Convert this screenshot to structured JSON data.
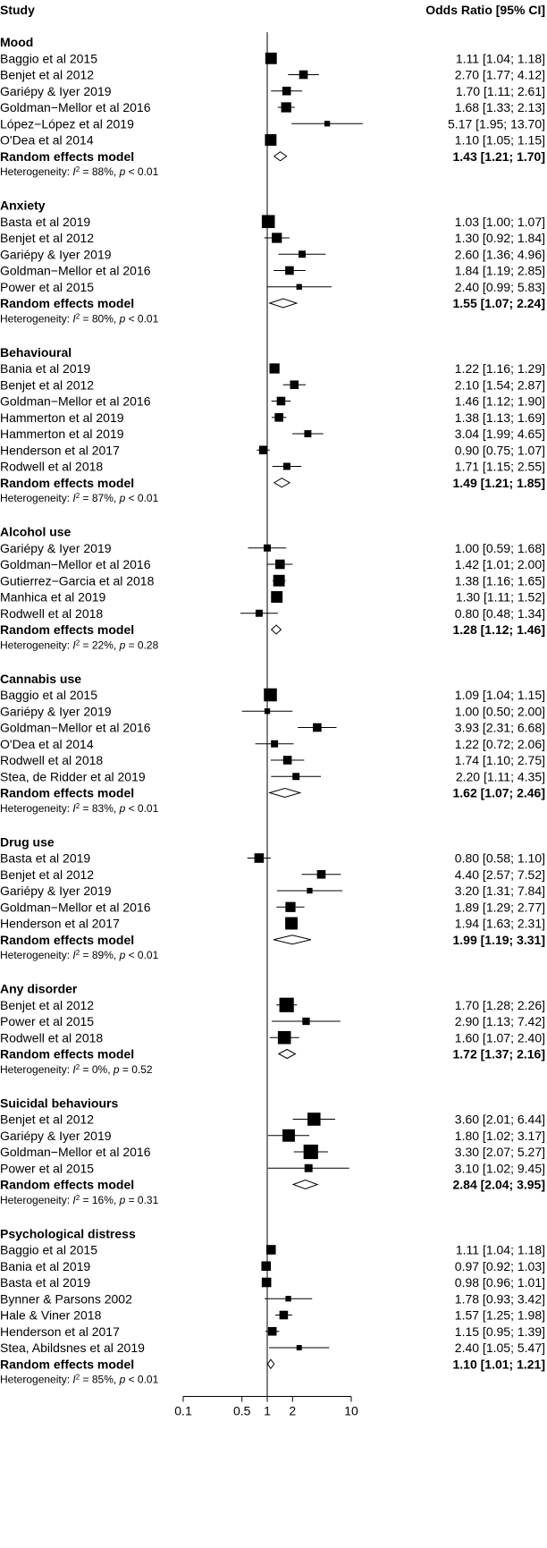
{
  "chart_data": {
    "type": "forest",
    "header": {
      "study": "Study",
      "or": "Odds Ratio [95% CI]"
    },
    "x_axis": {
      "scale": "log",
      "ticks": [
        "0.1",
        "0.5",
        "1",
        "2",
        "10"
      ],
      "tick_values": [
        0.1,
        0.5,
        1,
        2,
        10
      ],
      "reference_line": 1
    },
    "groups": [
      {
        "name": "Mood",
        "studies": [
          {
            "study": "Baggio et al 2015",
            "or": 1.11,
            "lo": 1.04,
            "hi": 1.18,
            "label": "1.11 [1.04; 1.18]",
            "weight": 3
          },
          {
            "study": "Benjet et al 2012",
            "or": 2.7,
            "lo": 1.77,
            "hi": 4.12,
            "label": "2.70 [1.77; 4.12]",
            "weight": 2
          },
          {
            "study": "Gariépy & Iyer 2019",
            "or": 1.7,
            "lo": 1.11,
            "hi": 2.61,
            "label": "1.70 [1.11; 2.61]",
            "weight": 2
          },
          {
            "study": "Goldman−Mellor et al 2016",
            "or": 1.68,
            "lo": 1.33,
            "hi": 2.13,
            "label": "1.68 [1.33; 2.13]",
            "weight": 2.5
          },
          {
            "study": "López−López et al 2019",
            "or": 5.17,
            "lo": 1.95,
            "hi": 13.7,
            "label": "5.17 [1.95; 13.70]",
            "weight": 1
          },
          {
            "study": "O'Dea et al 2014",
            "or": 1.1,
            "lo": 1.05,
            "hi": 1.15,
            "label": "1.10 [1.05; 1.15]",
            "weight": 3
          }
        ],
        "summary": {
          "label": "Random effects model",
          "or": 1.43,
          "lo": 1.21,
          "hi": 1.7,
          "text": "1.43 [1.21; 1.70]"
        },
        "heterogeneity": {
          "i2": "88%",
          "p": "< 0.01"
        }
      },
      {
        "name": "Anxiety",
        "studies": [
          {
            "study": "Basta et al 2019",
            "or": 1.03,
            "lo": 1.0,
            "hi": 1.07,
            "label": "1.03 [1.00; 1.07]",
            "weight": 3.5
          },
          {
            "study": "Benjet et al 2012",
            "or": 1.3,
            "lo": 0.92,
            "hi": 1.84,
            "label": "1.30 [0.92; 1.84]",
            "weight": 2.5
          },
          {
            "study": "Gariépy & Iyer 2019",
            "or": 2.6,
            "lo": 1.36,
            "hi": 4.96,
            "label": "2.60 [1.36; 4.96]",
            "weight": 1.5
          },
          {
            "study": "Goldman−Mellor et al 2016",
            "or": 1.84,
            "lo": 1.19,
            "hi": 2.85,
            "label": "1.84 [1.19; 2.85]",
            "weight": 2
          },
          {
            "study": "Power et al 2015",
            "or": 2.4,
            "lo": 0.99,
            "hi": 5.83,
            "label": "2.40 [0.99; 5.83]",
            "weight": 1
          }
        ],
        "summary": {
          "label": "Random effects model",
          "or": 1.55,
          "lo": 1.07,
          "hi": 2.24,
          "text": "1.55 [1.07; 2.24]"
        },
        "heterogeneity": {
          "i2": "80%",
          "p": "< 0.01"
        }
      },
      {
        "name": "Behavioural",
        "studies": [
          {
            "study": "Bania et al 2019",
            "or": 1.22,
            "lo": 1.16,
            "hi": 1.29,
            "label": "1.22 [1.16; 1.29]",
            "weight": 2.5
          },
          {
            "study": "Benjet et al 2012",
            "or": 2.1,
            "lo": 1.54,
            "hi": 2.87,
            "label": "2.10 [1.54; 2.87]",
            "weight": 2
          },
          {
            "study": "Goldman−Mellor et al 2016",
            "or": 1.46,
            "lo": 1.12,
            "hi": 1.9,
            "label": "1.46 [1.12; 1.90]",
            "weight": 2
          },
          {
            "study": "Hammerton et al 2019",
            "or": 1.38,
            "lo": 1.13,
            "hi": 1.69,
            "label": "1.38 [1.13; 1.69]",
            "weight": 2
          },
          {
            "study": "Hammerton et al 2019",
            "or": 3.04,
            "lo": 1.99,
            "hi": 4.65,
            "label": "3.04 [1.99; 4.65]",
            "weight": 1.5
          },
          {
            "study": "Henderson et al 2017",
            "or": 0.9,
            "lo": 0.75,
            "hi": 1.07,
            "label": "0.90 [0.75; 1.07]",
            "weight": 2
          },
          {
            "study": "Rodwell et al 2018",
            "or": 1.71,
            "lo": 1.15,
            "hi": 2.55,
            "label": "1.71 [1.15; 2.55]",
            "weight": 1.5
          }
        ],
        "summary": {
          "label": "Random effects model",
          "or": 1.49,
          "lo": 1.21,
          "hi": 1.85,
          "text": "1.49 [1.21; 1.85]"
        },
        "heterogeneity": {
          "i2": "87%",
          "p": "< 0.01"
        }
      },
      {
        "name": "Alcohol use",
        "studies": [
          {
            "study": "Gariépy & Iyer 2019",
            "or": 1.0,
            "lo": 0.59,
            "hi": 1.68,
            "label": "1.00 [0.59; 1.68]",
            "weight": 1.5
          },
          {
            "study": "Goldman−Mellor et al 2016",
            "or": 1.42,
            "lo": 1.01,
            "hi": 2.0,
            "label": "1.42 [1.01; 2.00]",
            "weight": 2.3
          },
          {
            "study": "Gutierrez−Garcia et al 2018",
            "or": 1.38,
            "lo": 1.16,
            "hi": 1.65,
            "label": "1.38 [1.16; 1.65]",
            "weight": 3
          },
          {
            "study": "Manhica et al 2019",
            "or": 1.3,
            "lo": 1.11,
            "hi": 1.52,
            "label": "1.30 [1.11; 1.52]",
            "weight": 3
          },
          {
            "study": "Rodwell et al 2018",
            "or": 0.8,
            "lo": 0.48,
            "hi": 1.34,
            "label": "0.80 [0.48; 1.34]",
            "weight": 1.5
          }
        ],
        "summary": {
          "label": "Random effects model",
          "or": 1.28,
          "lo": 1.12,
          "hi": 1.46,
          "text": "1.28 [1.12; 1.46]"
        },
        "heterogeneity": {
          "i2": "22%",
          "p": "= 0.28"
        }
      },
      {
        "name": "Cannabis use",
        "studies": [
          {
            "study": "Baggio et al 2015",
            "or": 1.09,
            "lo": 1.04,
            "hi": 1.15,
            "label": "1.09 [1.04; 1.15]",
            "weight": 3.5
          },
          {
            "study": "Gariépy & Iyer 2019",
            "or": 1.0,
            "lo": 0.5,
            "hi": 2.0,
            "label": "1.00 [0.50; 2.00]",
            "weight": 1
          },
          {
            "study": "Goldman−Mellor et al 2016",
            "or": 3.93,
            "lo": 2.31,
            "hi": 6.68,
            "label": "3.93 [2.31; 6.68]",
            "weight": 2
          },
          {
            "study": "O'Dea et al 2014",
            "or": 1.22,
            "lo": 0.72,
            "hi": 2.06,
            "label": "1.22 [0.72; 2.06]",
            "weight": 1.5
          },
          {
            "study": "Rodwell et al 2018",
            "or": 1.74,
            "lo": 1.1,
            "hi": 2.75,
            "label": "1.74 [1.10; 2.75]",
            "weight": 2
          },
          {
            "study": "Stea, de Ridder et al 2019",
            "or": 2.2,
            "lo": 1.11,
            "hi": 4.35,
            "label": "2.20 [1.11; 4.35]",
            "weight": 1.5
          }
        ],
        "summary": {
          "label": "Random effects model",
          "or": 1.62,
          "lo": 1.07,
          "hi": 2.46,
          "text": "1.62 [1.07; 2.46]"
        },
        "heterogeneity": {
          "i2": "83%",
          "p": "< 0.01"
        }
      },
      {
        "name": "Drug use",
        "studies": [
          {
            "study": "Basta et al 2019",
            "or": 0.8,
            "lo": 0.58,
            "hi": 1.1,
            "label": "0.80 [0.58; 1.10]",
            "weight": 2.3
          },
          {
            "study": "Benjet et al 2012",
            "or": 4.4,
            "lo": 2.57,
            "hi": 7.52,
            "label": "4.40 [2.57; 7.52]",
            "weight": 2
          },
          {
            "study": "Gariépy & Iyer 2019",
            "or": 3.2,
            "lo": 1.31,
            "hi": 7.84,
            "label": "3.20 [1.31; 7.84]",
            "weight": 1
          },
          {
            "study": "Goldman−Mellor et al 2016",
            "or": 1.89,
            "lo": 1.29,
            "hi": 2.77,
            "label": "1.89 [1.29; 2.77]",
            "weight": 2.5
          },
          {
            "study": "Henderson et al 2017",
            "or": 1.94,
            "lo": 1.63,
            "hi": 2.31,
            "label": "1.94 [1.63; 2.31]",
            "weight": 3.3
          }
        ],
        "summary": {
          "label": "Random effects model",
          "or": 1.99,
          "lo": 1.19,
          "hi": 3.31,
          "text": "1.99 [1.19; 3.31]"
        },
        "heterogeneity": {
          "i2": "89%",
          "p": "< 0.01"
        }
      },
      {
        "name": "Any disorder",
        "studies": [
          {
            "study": "Benjet et al 2012",
            "or": 1.7,
            "lo": 1.28,
            "hi": 2.26,
            "label": "1.70 [1.28; 2.26]",
            "weight": 4
          },
          {
            "study": "Power et al 2015",
            "or": 2.9,
            "lo": 1.13,
            "hi": 7.42,
            "label": "2.90 [1.13; 7.42]",
            "weight": 1.6
          },
          {
            "study": "Rodwell et al 2018",
            "or": 1.6,
            "lo": 1.07,
            "hi": 2.4,
            "label": "1.60 [1.07; 2.40]",
            "weight": 3.5
          }
        ],
        "summary": {
          "label": "Random effects model",
          "or": 1.72,
          "lo": 1.37,
          "hi": 2.16,
          "text": "1.72 [1.37; 2.16]"
        },
        "heterogeneity": {
          "i2": "0%",
          "p": "= 0.52"
        }
      },
      {
        "name": "Suicidal behaviours",
        "studies": [
          {
            "study": "Benjet et al 2012",
            "or": 3.6,
            "lo": 2.01,
            "hi": 6.44,
            "label": "3.60 [2.01; 6.44]",
            "weight": 3.5
          },
          {
            "study": "Gariépy & Iyer 2019",
            "or": 1.8,
            "lo": 1.02,
            "hi": 3.17,
            "label": "1.80 [1.02; 3.17]",
            "weight": 3.3
          },
          {
            "study": "Goldman−Mellor et al 2016",
            "or": 3.3,
            "lo": 2.07,
            "hi": 5.27,
            "label": "3.30 [2.07; 5.27]",
            "weight": 4
          },
          {
            "study": "Power et al 2015",
            "or": 3.1,
            "lo": 1.02,
            "hi": 9.45,
            "label": "3.10 [1.02; 9.45]",
            "weight": 1.8
          }
        ],
        "summary": {
          "label": "Random effects model",
          "or": 2.84,
          "lo": 2.04,
          "hi": 3.95,
          "text": "2.84 [2.04; 3.95]"
        },
        "heterogeneity": {
          "i2": "16%",
          "p": "= 0.31"
        }
      },
      {
        "name": "Psychological distress",
        "studies": [
          {
            "study": "Baggio et al 2015",
            "or": 1.11,
            "lo": 1.04,
            "hi": 1.18,
            "label": "1.11 [1.04; 1.18]",
            "weight": 2.3
          },
          {
            "study": "Bania et al 2019",
            "or": 0.97,
            "lo": 0.92,
            "hi": 1.03,
            "label": "0.97 [0.92; 1.03]",
            "weight": 2.3
          },
          {
            "study": "Basta et al 2019",
            "or": 0.98,
            "lo": 0.96,
            "hi": 1.01,
            "label": "0.98 [0.96; 1.01]",
            "weight": 2.3
          },
          {
            "study": "Bynner & Parsons 2002",
            "or": 1.78,
            "lo": 0.93,
            "hi": 3.42,
            "label": "1.78 [0.93; 3.42]",
            "weight": 1
          },
          {
            "study": "Hale & Viner 2018",
            "or": 1.57,
            "lo": 1.25,
            "hi": 1.98,
            "label": "1.57 [1.25; 1.98]",
            "weight": 2
          },
          {
            "study": "Henderson et al 2017",
            "or": 1.15,
            "lo": 0.95,
            "hi": 1.39,
            "label": "1.15 [0.95; 1.39]",
            "weight": 2
          },
          {
            "study": "Stea, Abildsnes et al 2019",
            "or": 2.4,
            "lo": 1.05,
            "hi": 5.47,
            "label": "2.40 [1.05; 5.47]",
            "weight": 0.9
          }
        ],
        "summary": {
          "label": "Random effects model",
          "or": 1.1,
          "lo": 1.01,
          "hi": 1.21,
          "text": "1.10 [1.01; 1.21]"
        },
        "heterogeneity": {
          "i2": "85%",
          "p": "< 0.01"
        }
      }
    ]
  }
}
